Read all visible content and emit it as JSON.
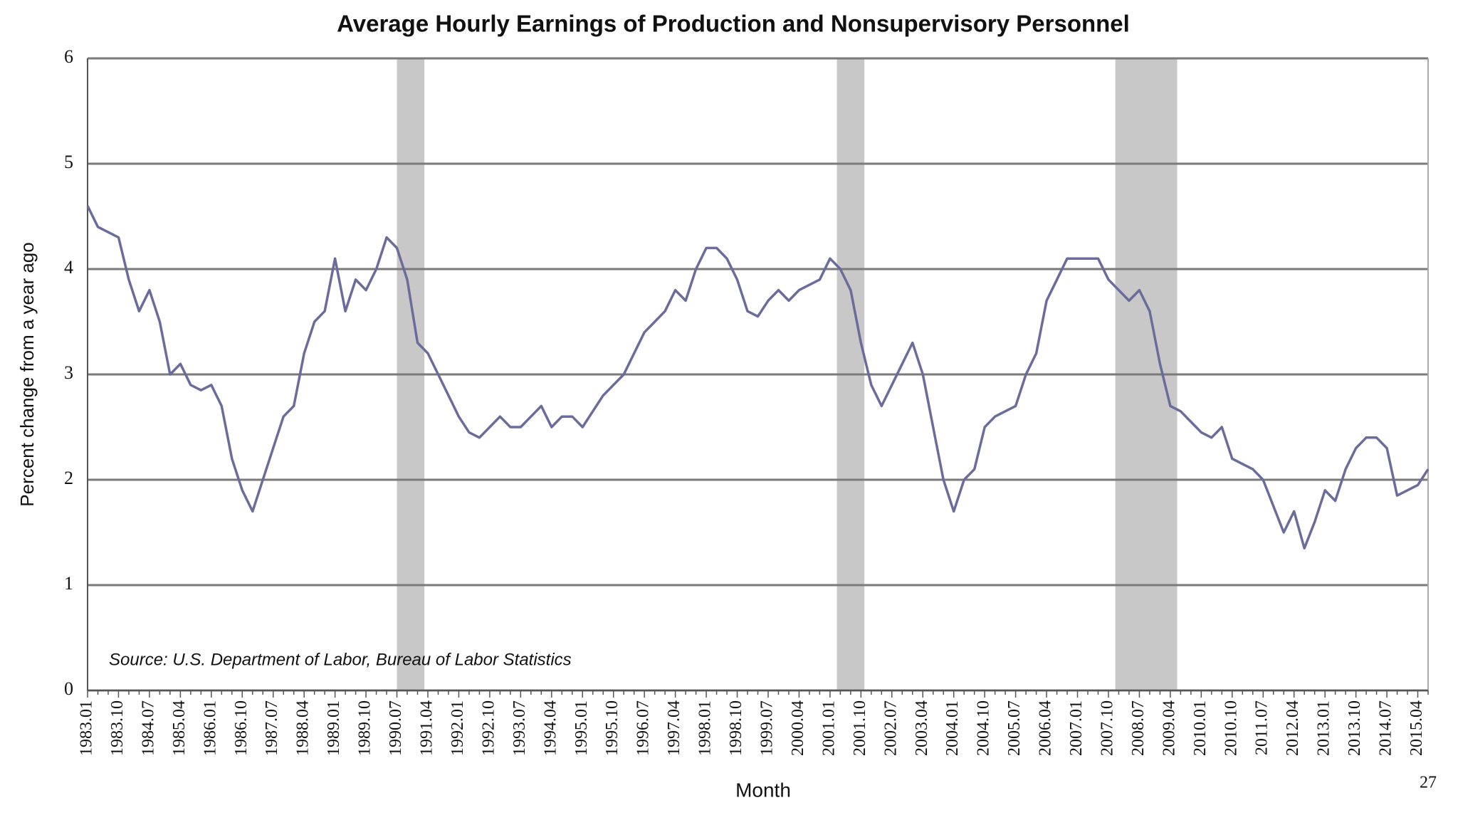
{
  "chart_data": {
    "type": "line",
    "title": "Average Hourly Earnings of Production and Nonsupervisory Personnel",
    "x_label": "Month",
    "y_label": "Percent change from a year ago",
    "annotation": "Source: U.S. Department of Labor, Bureau of Labor Statistics",
    "page_number": "27",
    "categories": [
      "1983.01",
      null,
      null,
      "1983.10",
      null,
      null,
      "1984.07",
      null,
      null,
      "1985.04",
      null,
      null,
      "1986.01",
      null,
      null,
      "1986.10",
      null,
      null,
      "1987.07",
      null,
      null,
      "1988.04",
      null,
      null,
      "1989.01",
      null,
      null,
      "1989.10",
      null,
      null,
      "1990.07",
      null,
      null,
      "1991.04",
      null,
      null,
      "1992.01",
      null,
      null,
      "1992.10",
      null,
      null,
      "1993.07",
      null,
      null,
      "1994.04",
      null,
      null,
      "1995.01",
      null,
      null,
      "1995.10",
      null,
      null,
      "1996.07",
      null,
      null,
      "1997.04",
      null,
      null,
      "1998.01",
      null,
      null,
      "1998.10",
      null,
      null,
      "1999.07",
      null,
      null,
      "2000.04",
      null,
      null,
      "2001.01",
      null,
      null,
      "2001.10",
      null,
      null,
      "2002.07",
      null,
      null,
      "2003.04",
      null,
      null,
      "2004.01",
      null,
      null,
      "2004.10",
      null,
      null,
      "2005.07",
      null,
      null,
      "2006.04",
      null,
      null,
      "2007.01",
      null,
      null,
      "2007.10",
      null,
      null,
      "2008.07",
      null,
      null,
      "2009.04",
      null,
      null,
      "2010.01",
      null,
      null,
      "2010.10",
      null,
      null,
      "2011.07",
      null,
      null,
      "2012.04",
      null,
      null,
      "2013.01",
      null,
      null,
      "2013.10",
      null,
      null,
      "2014.07",
      null,
      null,
      "2015.04",
      null
    ],
    "series": [
      {
        "name": "Average hourly earnings",
        "color": "#6c6c9c",
        "values": [
          4.6,
          4.4,
          4.35,
          4.3,
          3.9,
          3.6,
          3.8,
          3.5,
          3.0,
          3.1,
          2.9,
          2.85,
          2.9,
          2.7,
          2.2,
          1.9,
          1.7,
          2.0,
          2.3,
          2.6,
          2.7,
          3.2,
          3.5,
          3.6,
          4.1,
          3.6,
          3.9,
          3.8,
          4.0,
          4.3,
          4.2,
          3.9,
          3.3,
          3.2,
          3.0,
          2.8,
          2.6,
          2.45,
          2.4,
          2.5,
          2.6,
          2.5,
          2.5,
          2.6,
          2.7,
          2.5,
          2.6,
          2.6,
          2.5,
          2.65,
          2.8,
          2.9,
          3.0,
          3.2,
          3.4,
          3.5,
          3.6,
          3.8,
          3.7,
          4.0,
          4.2,
          4.2,
          4.1,
          3.9,
          3.6,
          3.55,
          3.7,
          3.8,
          3.7,
          3.8,
          3.85,
          3.9,
          4.1,
          4.0,
          3.8,
          3.3,
          2.9,
          2.7,
          2.9,
          3.1,
          3.3,
          3.0,
          2.5,
          2.0,
          1.7,
          2.0,
          2.1,
          2.5,
          2.6,
          2.65,
          2.7,
          3.0,
          3.2,
          3.7,
          3.9,
          4.1,
          4.1,
          4.1,
          4.1,
          3.9,
          3.8,
          3.7,
          3.8,
          3.6,
          3.1,
          2.7,
          2.65,
          2.55,
          2.45,
          2.4,
          2.5,
          2.2,
          2.15,
          2.1,
          2.0,
          1.75,
          1.5,
          1.7,
          1.35,
          1.6,
          1.9,
          1.8,
          2.1,
          2.3,
          2.4,
          2.4,
          2.3,
          1.85,
          1.9,
          1.95,
          2.1
        ]
      }
    ],
    "recessions": [
      {
        "start": "1990.07",
        "end": "1991.03"
      },
      {
        "start": "2001.03",
        "end": "2001.11"
      },
      {
        "start": "2007.12",
        "end": "2009.06"
      }
    ],
    "recession_color": "#c8c8c8",
    "ylim": [
      0,
      6
    ],
    "yticks": [
      0,
      1,
      2,
      3,
      4,
      5,
      6
    ],
    "grid": true
  }
}
